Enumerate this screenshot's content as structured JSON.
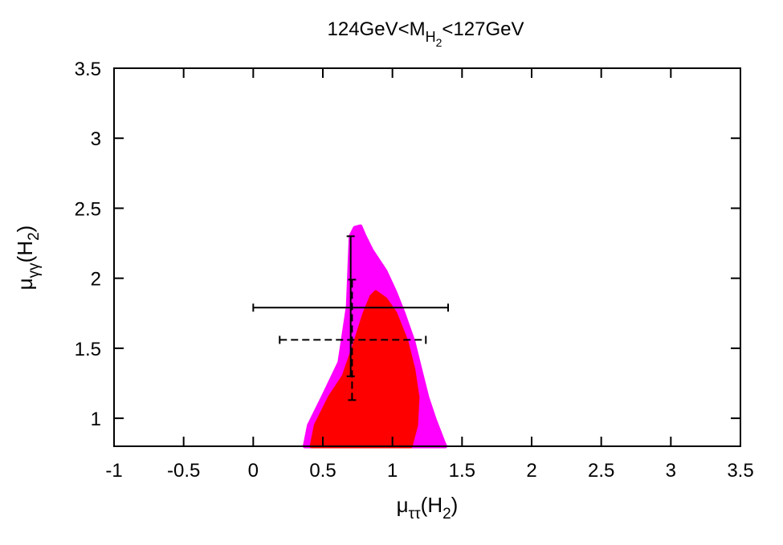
{
  "chart_data": {
    "type": "scatter",
    "title": {
      "main": "124GeV<M",
      "sub": "H",
      "subsub": "2",
      "rest": "<127GeV"
    },
    "xlabel": {
      "mu": "μ",
      "sub": "ττ",
      "rest_open": "(H",
      "rest_sub": "2",
      "rest_close": ")"
    },
    "ylabel": {
      "mu": "μ",
      "sub": "γγ",
      "rest_open": "(H",
      "rest_sub": "2",
      "rest_close": ")"
    },
    "xlim": [
      -1,
      3.5
    ],
    "ylim": [
      0.8,
      3.5
    ],
    "xticks": [
      -1,
      -0.5,
      0,
      0.5,
      1,
      1.5,
      2,
      2.5,
      3,
      3.5
    ],
    "xtick_labels": [
      "-1",
      "-0.5",
      "0",
      "0.5",
      "1",
      "1.5",
      "2",
      "2.5",
      "3",
      "3.5"
    ],
    "yticks": [
      1,
      1.5,
      2,
      2.5,
      3,
      3.5
    ],
    "ytick_labels": [
      "1",
      "1.5",
      "2",
      "2.5",
      "3",
      "3.5"
    ],
    "grid": false,
    "legend": "none",
    "regions": [
      {
        "color": "#ff00ff",
        "outline": [
          [
            0.37,
            0.8
          ],
          [
            0.4,
            0.95
          ],
          [
            0.5,
            1.15
          ],
          [
            0.62,
            1.4
          ],
          [
            0.68,
            1.8
          ],
          [
            0.7,
            2.3
          ],
          [
            0.73,
            2.36
          ],
          [
            0.77,
            2.37
          ],
          [
            0.8,
            2.3
          ],
          [
            0.85,
            2.2
          ],
          [
            0.95,
            2.05
          ],
          [
            1.02,
            1.9
          ],
          [
            1.08,
            1.75
          ],
          [
            1.15,
            1.55
          ],
          [
            1.2,
            1.35
          ],
          [
            1.25,
            1.15
          ],
          [
            1.3,
            1.0
          ],
          [
            1.37,
            0.82
          ],
          [
            1.38,
            0.8
          ]
        ]
      },
      {
        "color": "#ff0000",
        "outline": [
          [
            0.42,
            0.8
          ],
          [
            0.45,
            0.95
          ],
          [
            0.55,
            1.15
          ],
          [
            0.65,
            1.3
          ],
          [
            0.72,
            1.5
          ],
          [
            0.8,
            1.75
          ],
          [
            0.85,
            1.87
          ],
          [
            0.88,
            1.9
          ],
          [
            0.95,
            1.85
          ],
          [
            1.02,
            1.75
          ],
          [
            1.1,
            1.55
          ],
          [
            1.15,
            1.35
          ],
          [
            1.18,
            1.15
          ],
          [
            1.17,
            0.95
          ],
          [
            1.13,
            0.8
          ]
        ]
      }
    ],
    "error_bars": [
      {
        "style": "solid",
        "x": 0.7,
        "y": 1.79,
        "xerr": [
          0.0,
          1.4
        ],
        "yerr": [
          1.3,
          2.3
        ]
      },
      {
        "style": "dashed",
        "x": 0.71,
        "y": 1.56,
        "xerr": [
          0.19,
          1.24
        ],
        "yerr": [
          1.13,
          1.99
        ]
      }
    ]
  }
}
